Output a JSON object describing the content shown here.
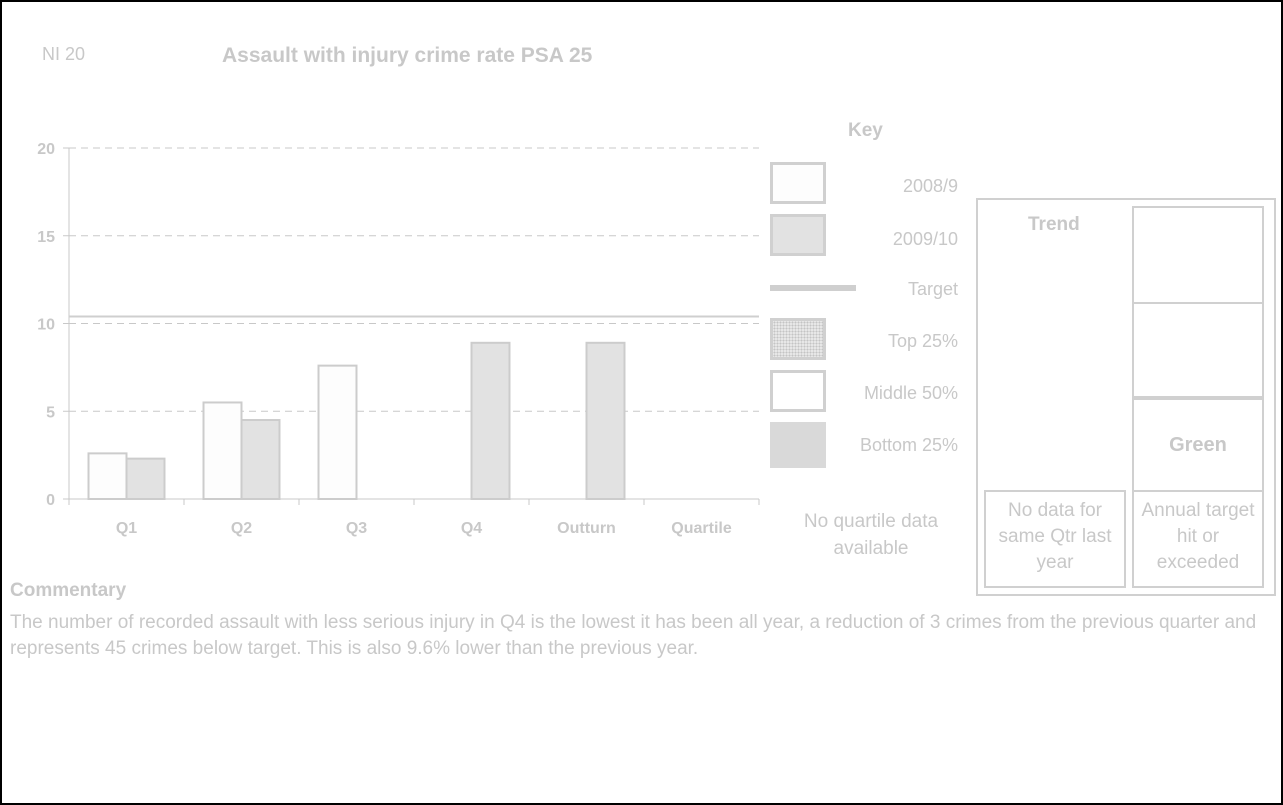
{
  "header": {
    "indicator": "NI 20",
    "title": "Assault with injury crime rate PSA 25"
  },
  "chart_data": {
    "type": "bar",
    "categories": [
      "Q1",
      "Q2",
      "Q3",
      "Q4",
      "Outturn",
      "Quartile"
    ],
    "series": [
      {
        "name": "2008/9",
        "values": [
          2.6,
          5.5,
          7.6,
          null,
          null,
          null
        ],
        "color": "#fdfdfd"
      },
      {
        "name": "2009/10",
        "values": [
          2.3,
          4.5,
          null,
          8.9,
          8.9,
          null
        ],
        "color": "#e2e2e2"
      }
    ],
    "target": 10.4,
    "ylim": [
      0,
      20
    ],
    "yticks": [
      0,
      5,
      10,
      15,
      20
    ],
    "grid": true,
    "legend": "right"
  },
  "key": {
    "title": "Key",
    "items": [
      {
        "label": "2008/9",
        "style": "white"
      },
      {
        "label": "2009/10",
        "style": "light"
      },
      {
        "label": "Target",
        "style": "line"
      },
      {
        "label": "Top 25%",
        "style": "dotted"
      },
      {
        "label": "Middle 50%",
        "style": "outline"
      },
      {
        "label": "Bottom 25%",
        "style": "grey"
      }
    ],
    "no_quartile": "No quartile data available"
  },
  "trend": {
    "title": "Trend",
    "status": "Green",
    "left_caption": "No data for same Qtr last year",
    "right_caption": "Annual target hit or exceeded"
  },
  "commentary": {
    "heading": "Commentary",
    "text": "The number of recorded assault with less serious injury in Q4 is the lowest it has been all year, a reduction of 3 crimes from the previous quarter and represents 45 crimes below target. This is also 9.6% lower than the previous year."
  },
  "colors": {
    "text": "#c8c8c8",
    "axis": "#c8c8c8",
    "bar_border": "#cccccc",
    "grid": "#c8c8c8"
  }
}
